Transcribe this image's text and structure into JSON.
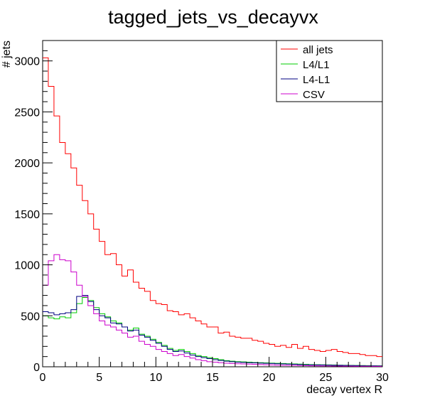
{
  "chart_data": {
    "type": "line",
    "title": "tagged_jets_vs_decayvx",
    "xlabel": "decay vertex R",
    "ylabel": "# jets",
    "xlim": [
      0,
      30
    ],
    "ylim": [
      0,
      3200
    ],
    "xticks": [
      0,
      5,
      10,
      15,
      20,
      25,
      30
    ],
    "yticks": [
      0,
      500,
      1000,
      1500,
      2000,
      2500,
      3000
    ],
    "grid": false,
    "legend_position": "top-right",
    "bin_width": 0.5,
    "series": [
      {
        "name": "all jets",
        "color": "#ff0000",
        "values": [
          3030,
          2750,
          2460,
          2200,
          2090,
          1950,
          1780,
          1630,
          1500,
          1350,
          1230,
          1100,
          1110,
          1000,
          890,
          950,
          830,
          770,
          740,
          650,
          620,
          610,
          550,
          540,
          510,
          520,
          480,
          450,
          420,
          390,
          390,
          330,
          340,
          300,
          290,
          280,
          280,
          260,
          250,
          230,
          220,
          200,
          210,
          190,
          220,
          180,
          200,
          170,
          160,
          150,
          160,
          170,
          150,
          140,
          130,
          130,
          120,
          110,
          110,
          100
        ]
      },
      {
        "name": "L4/L1",
        "color": "#00cc00",
        "values": [
          500,
          480,
          470,
          490,
          480,
          530,
          620,
          680,
          650,
          580,
          520,
          490,
          450,
          430,
          390,
          360,
          380,
          320,
          300,
          270,
          240,
          210,
          180,
          160,
          170,
          150,
          130,
          110,
          100,
          90,
          80,
          70,
          60,
          55,
          50,
          48,
          45,
          42,
          40,
          38,
          36,
          34,
          32,
          30,
          28,
          26,
          24,
          22,
          20,
          19,
          18,
          17,
          16,
          15,
          14,
          13,
          12,
          11,
          10,
          10
        ]
      },
      {
        "name": "L4-L1",
        "color": "#000080",
        "values": [
          540,
          530,
          510,
          520,
          530,
          560,
          690,
          700,
          640,
          560,
          500,
          480,
          430,
          420,
          390,
          350,
          360,
          310,
          290,
          260,
          230,
          200,
          170,
          150,
          155,
          135,
          115,
          100,
          90,
          80,
          70,
          62,
          55,
          50,
          45,
          43,
          40,
          38,
          36,
          34,
          32,
          30,
          28,
          26,
          24,
          22,
          20,
          19,
          18,
          17,
          16,
          15,
          14,
          13,
          12,
          11,
          10,
          9,
          9,
          8
        ]
      },
      {
        "name": "CSV",
        "color": "#cc00cc",
        "values": [
          800,
          1040,
          1100,
          1050,
          1040,
          930,
          800,
          690,
          600,
          520,
          450,
          410,
          390,
          360,
          330,
          290,
          300,
          250,
          220,
          200,
          170,
          150,
          130,
          110,
          120,
          100,
          85,
          70,
          60,
          50,
          45,
          40,
          35,
          32,
          30,
          28,
          26,
          24,
          22,
          20,
          18,
          16,
          15,
          14,
          13,
          12,
          11,
          10,
          9,
          8,
          8,
          7,
          7,
          6,
          6,
          5,
          5,
          5,
          4,
          4
        ]
      }
    ]
  }
}
